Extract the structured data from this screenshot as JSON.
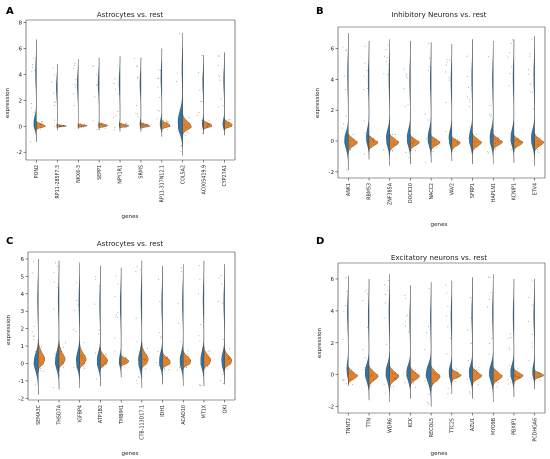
{
  "colors": {
    "rest": "#3274a1",
    "group": "#e1812c",
    "axis": "#333333",
    "zero_line": "#bfbfbf"
  },
  "chart_data": [
    {
      "type": "violin",
      "panel": "A",
      "title": "Astrocytes vs. rest",
      "xlabel": "genes",
      "ylabel": "expression",
      "ylim": [
        -2.6,
        8.2
      ],
      "yticks": [
        -2,
        0,
        2,
        4,
        6,
        8
      ],
      "categories": [
        "PON2",
        "RP11-285F7.3",
        "NKX6-3",
        "SEPP1",
        "NPY1R1",
        "SRMS",
        "RP11-317N12.1",
        "COL5A2",
        "AC005419.9",
        "CYP27A1"
      ],
      "series": [
        {
          "max": [
            6.7,
            4.8,
            5.2,
            5.3,
            5.4,
            5.3,
            6.0,
            7.2,
            5.5,
            5.7
          ],
          "min": [
            -1.2,
            -0.3,
            -0.2,
            -0.3,
            -0.4,
            -0.4,
            -0.8,
            -2.3,
            -0.6,
            -0.7
          ],
          "spread": [
            0.6,
            0.1,
            0.1,
            0.15,
            0.2,
            0.3,
            0.4,
            1.0,
            0.35,
            0.4
          ]
        },
        {
          "max": [
            0.4,
            0.15,
            0.2,
            0.3,
            0.25,
            0.3,
            0.5,
            1.0,
            0.5,
            0.6
          ],
          "min": [
            -0.3,
            -0.1,
            -0.1,
            -0.15,
            -0.15,
            -0.2,
            -0.3,
            -0.8,
            -0.3,
            -0.3
          ],
          "spread": [
            0.25,
            0.15,
            0.2,
            0.2,
            0.2,
            0.25,
            0.3,
            0.45,
            0.3,
            0.3
          ]
        }
      ]
    },
    {
      "type": "violin",
      "panel": "B",
      "title": "Inhibitory Neurons vs. rest",
      "xlabel": "genes",
      "ylabel": "expression",
      "ylim": [
        -2.4,
        7.4
      ],
      "yticks": [
        -2,
        0,
        2,
        4,
        6
      ],
      "categories": [
        "ANK1",
        "RBMS3",
        "ZNF385A",
        "DOCK10",
        "NACC2",
        "VAV2",
        "SFRP1",
        "HAPLN1",
        "KCNIP1",
        "ETV4"
      ],
      "series": [
        {
          "max": [
            7.0,
            6.5,
            6.6,
            6.5,
            6.4,
            6.3,
            6.6,
            6.5,
            6.6,
            6.8
          ],
          "min": [
            -1.9,
            -1.2,
            -1.6,
            -1.5,
            -1.4,
            -1.3,
            -1.5,
            -1.5,
            -1.4,
            -1.6
          ],
          "spread": [
            0.5,
            0.6,
            0.6,
            0.6,
            0.6,
            0.55,
            0.6,
            0.6,
            0.6,
            0.6
          ]
        },
        {
          "max": [
            0.5,
            0.4,
            0.5,
            0.4,
            0.4,
            0.3,
            0.5,
            0.5,
            0.4,
            0.5
          ],
          "min": [
            -0.8,
            -0.7,
            -0.8,
            -0.7,
            -0.7,
            -0.7,
            -0.8,
            -0.7,
            -0.7,
            -0.8
          ],
          "spread": [
            0.45,
            0.45,
            0.45,
            0.45,
            0.45,
            0.45,
            0.45,
            0.45,
            0.45,
            0.45
          ]
        }
      ]
    },
    {
      "type": "violin",
      "panel": "C",
      "title": "Astrocytes vs. rest",
      "xlabel": "genes",
      "ylabel": "expression",
      "ylim": [
        -2.1,
        6.4
      ],
      "yticks": [
        -2,
        -1,
        0,
        1,
        2,
        3,
        4,
        5,
        6
      ],
      "categories": [
        "SEMA3C",
        "THSD7A",
        "IGFBP4",
        "ATP1B2",
        "TMBIM1",
        "CTB-113D17.1",
        "IDH1",
        "ACAD10",
        "MT1X",
        "QKI"
      ],
      "series": [
        {
          "max": [
            6.0,
            5.9,
            5.8,
            5.6,
            5.5,
            5.9,
            5.6,
            5.7,
            5.9,
            5.7
          ],
          "min": [
            -1.8,
            -1.5,
            -1.4,
            -1.3,
            -0.8,
            -1.4,
            -1.2,
            -1.3,
            -1.3,
            -1.2
          ],
          "spread": [
            0.5,
            0.55,
            0.55,
            0.5,
            0.35,
            0.55,
            0.5,
            0.5,
            0.55,
            0.5
          ]
        },
        {
          "max": [
            1.4,
            1.3,
            1.2,
            0.9,
            0.5,
            1.2,
            0.7,
            0.8,
            1.0,
            0.9
          ],
          "min": [
            -0.5,
            -0.4,
            -0.4,
            -0.4,
            -0.2,
            -0.4,
            -0.4,
            -0.4,
            -0.4,
            -0.4
          ],
          "spread": [
            0.5,
            0.45,
            0.45,
            0.4,
            0.3,
            0.45,
            0.35,
            0.4,
            0.4,
            0.4
          ]
        }
      ]
    },
    {
      "type": "violin",
      "panel": "D",
      "title": "Excitatory neurons vs. rest",
      "xlabel": "genes",
      "ylabel": "expression",
      "ylim": [
        -2.4,
        7.0
      ],
      "yticks": [
        -2,
        0,
        2,
        4,
        6
      ],
      "categories": [
        "TNNT2",
        "TTN",
        "WDR6",
        "KCK",
        "RECQL5",
        "TTC25",
        "AZU1",
        "MYO9B",
        "PBXIP1",
        "PCDHGA6"
      ],
      "series": [
        {
          "max": [
            6.2,
            6.0,
            6.3,
            5.6,
            5.8,
            5.9,
            6.1,
            6.3,
            6.0,
            6.0
          ],
          "min": [
            -0.6,
            -1.6,
            -1.7,
            -1.5,
            -2.0,
            -1.2,
            -1.5,
            -1.7,
            -1.4,
            -0.9
          ],
          "spread": [
            0.55,
            0.55,
            0.55,
            0.5,
            0.55,
            0.45,
            0.5,
            0.55,
            0.5,
            0.45
          ]
        },
        {
          "max": [
            0.5,
            0.6,
            0.6,
            0.5,
            0.6,
            0.4,
            0.5,
            0.5,
            0.4,
            0.3
          ],
          "min": [
            -0.7,
            -0.9,
            -0.9,
            -0.8,
            -1.0,
            -0.5,
            -0.7,
            -0.8,
            -0.6,
            -0.4
          ],
          "spread": [
            0.45,
            0.45,
            0.45,
            0.45,
            0.45,
            0.4,
            0.45,
            0.45,
            0.4,
            0.4
          ]
        }
      ]
    }
  ]
}
